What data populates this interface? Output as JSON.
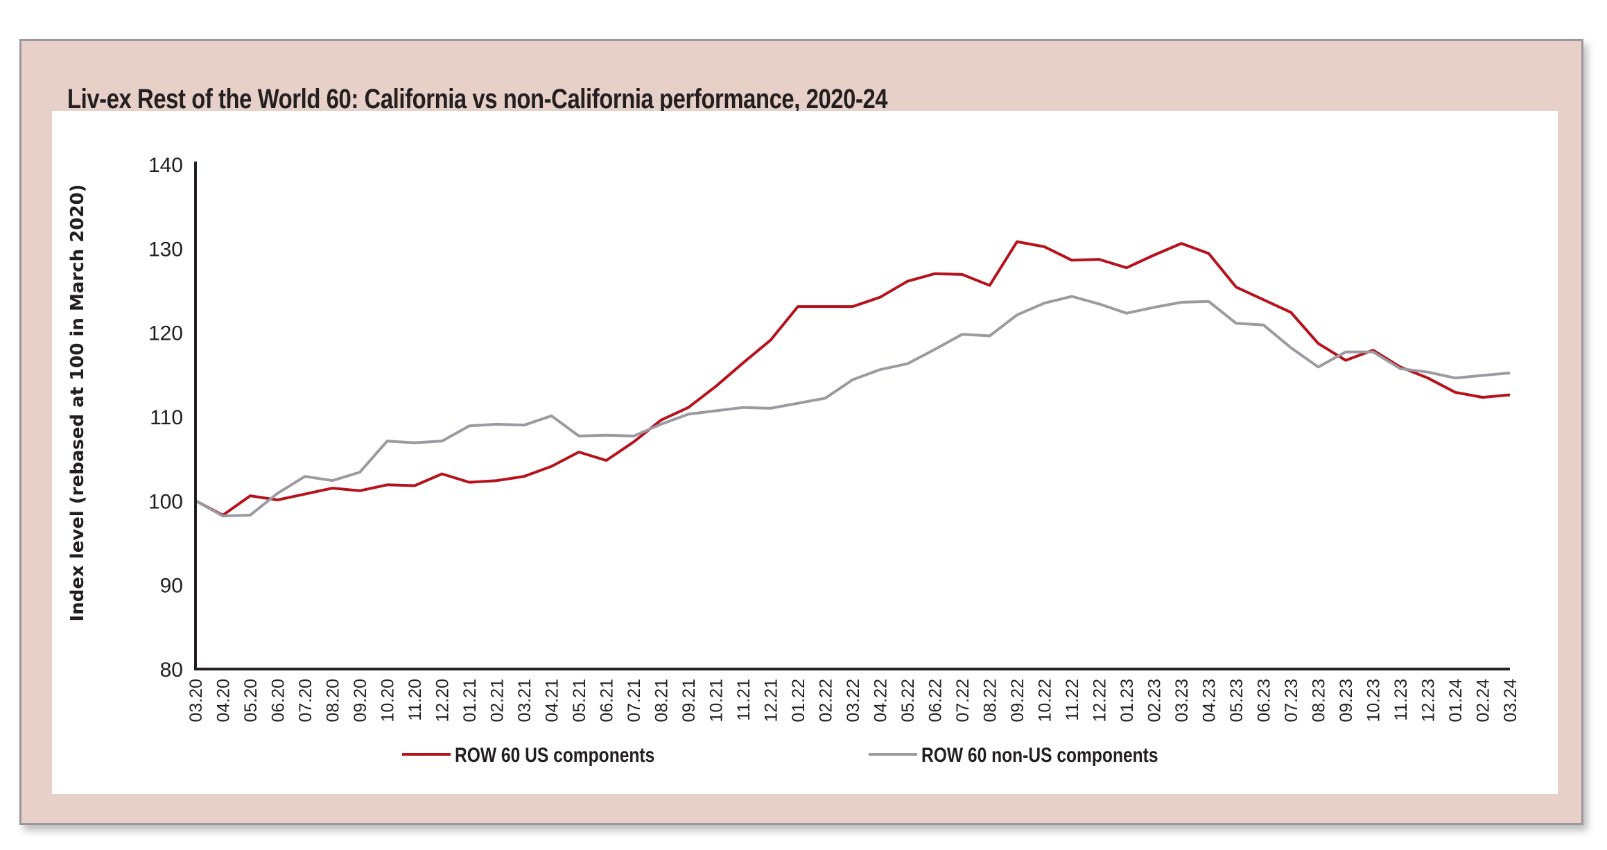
{
  "title": "Liv-ex Rest of the World 60: California vs non-California performance, 2020-24",
  "colors": {
    "us": "#b5121b",
    "nonus": "#9b9aa2",
    "axis": "#231f20",
    "frame_bg": "#e6d0c8"
  },
  "chart_data": {
    "type": "line",
    "title": "Liv-ex Rest of the World 60: California vs non-California performance, 2020-24",
    "xlabel": "",
    "ylabel": "Index level (rebased at 100 in March 2020)",
    "ylim": [
      80,
      140
    ],
    "yticks": [
      80,
      90,
      100,
      110,
      120,
      130,
      140
    ],
    "grid": false,
    "legend_position": "bottom",
    "x": [
      "03.20",
      "04.20",
      "05.20",
      "06.20",
      "07.20",
      "08.20",
      "09.20",
      "10.20",
      "11.20",
      "12.20",
      "01.21",
      "02.21",
      "03.21",
      "04.21",
      "05.21",
      "06.21",
      "07.21",
      "08.21",
      "09.21",
      "10.21",
      "11.21",
      "12.21",
      "01.22",
      "02.22",
      "03.22",
      "04.22",
      "05.22",
      "06.22",
      "07.22",
      "08.22",
      "09.22",
      "10.22",
      "11.22",
      "12.22",
      "01.23",
      "02.23",
      "03.23",
      "04.23",
      "05.23",
      "06.23",
      "07.23",
      "08.23",
      "09.23",
      "10.23",
      "11.23",
      "12.23",
      "01.24",
      "02.24",
      "03.24"
    ],
    "series": [
      {
        "name": "ROW 60 US components",
        "color": "#b5121b",
        "values": [
          100,
          98.3,
          100.6,
          100.1,
          100.8,
          101.5,
          101.2,
          101.9,
          101.8,
          103.2,
          102.2,
          102.4,
          102.9,
          104.1,
          105.8,
          104.8,
          107,
          109.6,
          111.1,
          113.6,
          116.4,
          119.1,
          123.1,
          123.1,
          123.1,
          124.2,
          126.1,
          127,
          126.9,
          125.6,
          130.8,
          130.2,
          128.6,
          128.7,
          127.7,
          129.2,
          130.6,
          129.4,
          125.4,
          123.9,
          122.4,
          118.7,
          116.7,
          117.9,
          115.9,
          114.6,
          112.9,
          112.3,
          112.6
        ]
      },
      {
        "name": "ROW 60 non-US components",
        "color": "#9b9aa2",
        "values": [
          100,
          98.2,
          98.3,
          100.9,
          102.9,
          102.4,
          103.4,
          107.1,
          106.9,
          107.1,
          108.9,
          109.1,
          109,
          110.1,
          107.7,
          107.8,
          107.7,
          109.1,
          110.3,
          110.7,
          111.1,
          111,
          111.6,
          112.2,
          114.4,
          115.6,
          116.3,
          118,
          119.8,
          119.6,
          122.1,
          123.5,
          124.3,
          123.4,
          122.3,
          123,
          123.6,
          123.7,
          121.1,
          120.9,
          118.2,
          115.9,
          117.7,
          117.7,
          115.7,
          115.3,
          114.6,
          114.9,
          115.2
        ]
      }
    ]
  }
}
